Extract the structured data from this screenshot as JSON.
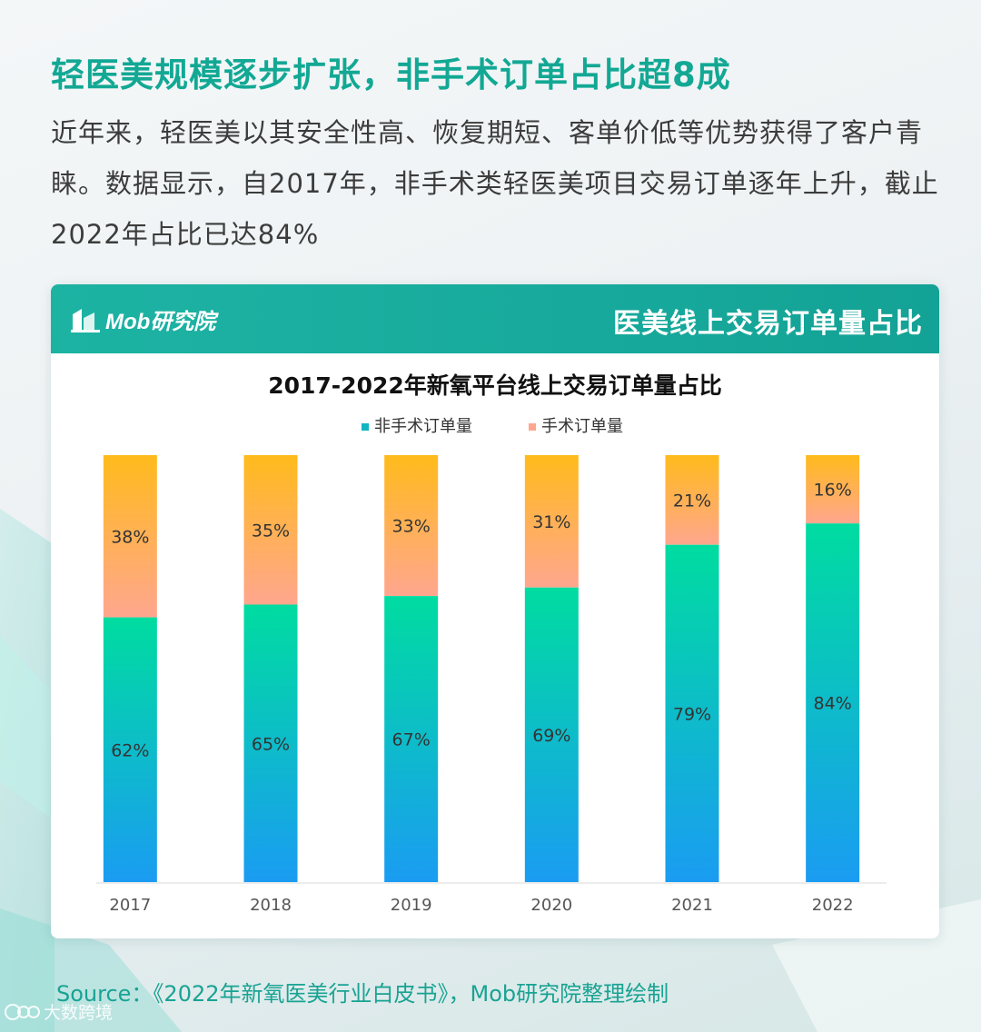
{
  "headline": "轻医美规模逐步扩张，非手术订单占比超8成",
  "intro": "近年来，轻医美以其安全性高、恢复期短、客单价低等优势获得了客户青睐。数据显示，自2017年，非手术类轻医美项目交易订单逐年上升，截止2022年占比已达84%",
  "card": {
    "logo_text": "Mob研究院",
    "title": "医美线上交易订单量占比"
  },
  "colors": {
    "brand": "#17aa9c",
    "non_surgical_top": "#00dca0",
    "non_surgical_bottom": "#1a9cf2",
    "surgical_top": "#ffbb1c",
    "surgical_bottom": "#ffa68e"
  },
  "chart_data": {
    "type": "bar",
    "stacked": true,
    "percent": true,
    "title": "2017-2022年新氧平台线上交易订单量占比",
    "categories": [
      "2017",
      "2018",
      "2019",
      "2020",
      "2021",
      "2022"
    ],
    "series": [
      {
        "name": "非手术订单量",
        "values": [
          62,
          65,
          67,
          69,
          79,
          84
        ],
        "labels": [
          "62%",
          "65%",
          "67%",
          "69%",
          "79%",
          "84%"
        ]
      },
      {
        "name": "手术订单量",
        "values": [
          38,
          35,
          33,
          31,
          21,
          16
        ],
        "labels": [
          "38%",
          "35%",
          "33%",
          "31%",
          "21%",
          "16%"
        ]
      }
    ],
    "ylim": [
      0,
      100
    ],
    "legend": "top-center",
    "grid": false
  },
  "source": "Source：《2022年新氧医美行业白皮书》，Mob研究院整理绘制",
  "watermark": "大数跨境"
}
